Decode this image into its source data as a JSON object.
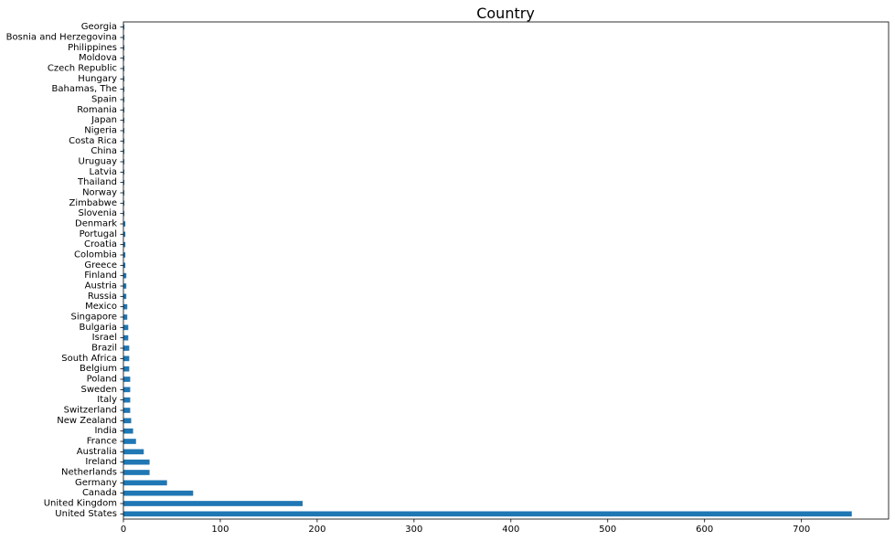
{
  "chart_data": {
    "type": "bar",
    "orientation": "horizontal",
    "title": "Country",
    "xlabel": "",
    "ylabel": "",
    "xlim": [
      0,
      790
    ],
    "x_ticks": [
      0,
      100,
      200,
      300,
      400,
      500,
      600,
      700
    ],
    "grid": false,
    "legend": "none",
    "bar_color": "#1f77b4",
    "categories": [
      "United States",
      "United Kingdom",
      "Canada",
      "Germany",
      "Netherlands",
      "Ireland",
      "Australia",
      "France",
      "India",
      "New Zealand",
      "Switzerland",
      "Italy",
      "Sweden",
      "Poland",
      "Belgium",
      "South Africa",
      "Brazil",
      "Israel",
      "Bulgaria",
      "Singapore",
      "Mexico",
      "Russia",
      "Austria",
      "Finland",
      "Greece",
      "Colombia",
      "Croatia",
      "Portugal",
      "Denmark",
      "Slovenia",
      "Zimbabwe",
      "Norway",
      "Thailand",
      "Latvia",
      "Uruguay",
      "China",
      "Costa Rica",
      "Nigeria",
      "Japan",
      "Romania",
      "Spain",
      "Bahamas, The",
      "Hungary",
      "Czech Republic",
      "Moldova",
      "Philippines",
      "Bosnia and Herzegovina",
      "Georgia"
    ],
    "values": [
      752,
      185,
      72,
      45,
      27,
      27,
      21,
      13,
      10,
      8,
      7,
      7,
      7,
      7,
      6,
      6,
      6,
      5,
      5,
      4,
      4,
      3,
      3,
      3,
      2,
      2,
      2,
      2,
      2,
      1,
      1,
      1,
      1,
      1,
      1,
      1,
      1,
      1,
      1,
      1,
      1,
      1,
      1,
      1,
      1,
      1,
      1,
      1
    ]
  }
}
